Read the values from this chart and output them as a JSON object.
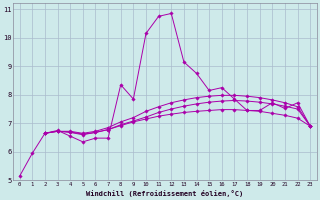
{
  "xlabel": "Windchill (Refroidissement éolien,°C)",
  "bg_color": "#ceeaea",
  "grid_color": "#aabbcc",
  "line_color": "#aa00aa",
  "xlim": [
    -0.5,
    23.5
  ],
  "ylim": [
    5,
    11.2
  ],
  "yticks": [
    5,
    6,
    7,
    8,
    9,
    10,
    11
  ],
  "xticks": [
    0,
    1,
    2,
    3,
    4,
    5,
    6,
    7,
    8,
    9,
    10,
    11,
    12,
    13,
    14,
    15,
    16,
    17,
    18,
    19,
    20,
    21,
    22,
    23
  ],
  "series": [
    {
      "x": [
        0,
        1,
        2,
        3,
        4,
        5,
        6,
        7,
        8,
        9,
        10,
        11,
        12,
        13,
        14,
        15,
        16,
        17,
        18,
        19,
        20,
        21,
        22,
        23
      ],
      "y": [
        5.15,
        5.95,
        6.65,
        6.75,
        6.55,
        6.35,
        6.48,
        6.48,
        8.35,
        7.85,
        10.15,
        10.75,
        10.85,
        9.15,
        8.75,
        8.15,
        8.25,
        7.85,
        7.45,
        7.45,
        7.72,
        7.52,
        7.72,
        6.9
      ]
    },
    {
      "x": [
        2,
        3,
        4,
        5,
        6,
        7,
        8,
        9,
        10,
        11,
        12,
        13,
        14,
        15,
        16,
        17,
        18,
        19,
        20,
        21,
        22,
        23
      ],
      "y": [
        6.65,
        6.72,
        6.68,
        6.6,
        6.68,
        6.78,
        6.95,
        7.08,
        7.22,
        7.38,
        7.5,
        7.6,
        7.68,
        7.74,
        7.78,
        7.8,
        7.78,
        7.74,
        7.68,
        7.6,
        7.5,
        6.9
      ]
    },
    {
      "x": [
        2,
        3,
        4,
        5,
        6,
        7,
        8,
        9,
        10,
        11,
        12,
        13,
        14,
        15,
        16,
        17,
        18,
        19,
        20,
        21,
        22,
        23
      ],
      "y": [
        6.65,
        6.72,
        6.72,
        6.65,
        6.72,
        6.85,
        7.05,
        7.2,
        7.42,
        7.58,
        7.72,
        7.82,
        7.9,
        7.95,
        7.98,
        7.98,
        7.95,
        7.9,
        7.82,
        7.72,
        7.58,
        6.9
      ]
    },
    {
      "x": [
        2,
        3,
        4,
        5,
        6,
        7,
        8,
        9,
        10,
        11,
        12,
        13,
        14,
        15,
        16,
        17,
        18,
        19,
        20,
        21,
        22,
        23
      ],
      "y": [
        6.65,
        6.72,
        6.7,
        6.62,
        6.68,
        6.78,
        6.92,
        7.05,
        7.15,
        7.25,
        7.32,
        7.38,
        7.42,
        7.45,
        7.48,
        7.48,
        7.45,
        7.42,
        7.35,
        7.28,
        7.18,
        6.9
      ]
    }
  ]
}
